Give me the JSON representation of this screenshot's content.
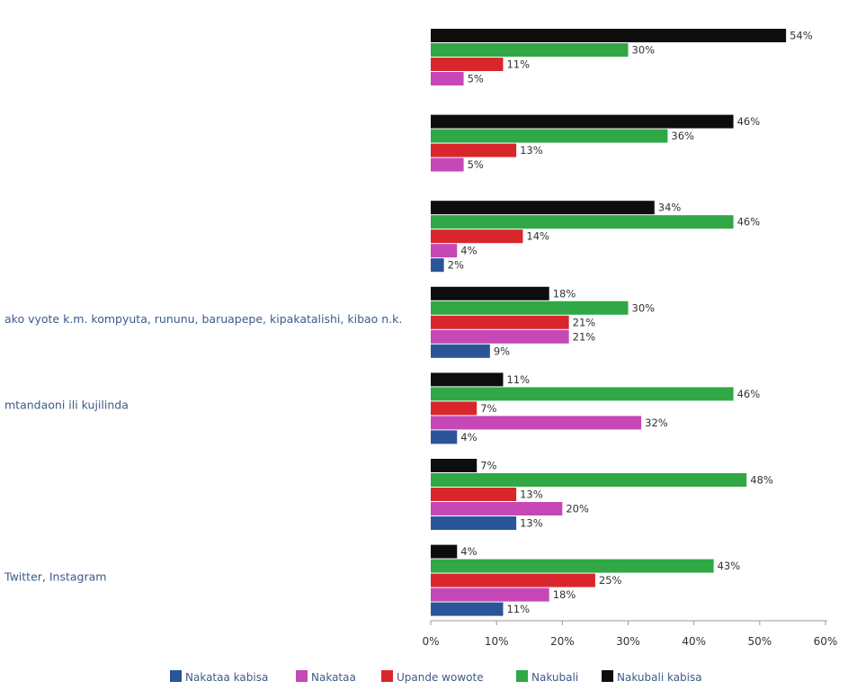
{
  "chart_data": {
    "type": "bar",
    "orientation": "horizontal",
    "categories": [
      "",
      "",
      "",
      "ako vyote k.m. kompyuta, rununu, baruapepe, kipakatalishi, kibao n.k.",
      "mtandaoni ili kujilinda",
      "",
      "Twitter, Instagram"
    ],
    "series": [
      {
        "name": "Nakataa kabisa",
        "color": "#2a5598",
        "values": [
          null,
          null,
          2,
          9,
          4,
          13,
          11
        ]
      },
      {
        "name": "Nakataa",
        "color": "#c548b6",
        "values": [
          5,
          5,
          4,
          21,
          32,
          20,
          18
        ]
      },
      {
        "name": "Upande wowote",
        "color": "#d9262c",
        "values": [
          11,
          13,
          14,
          21,
          7,
          13,
          25
        ]
      },
      {
        "name": "Nakubali",
        "color": "#2fa845",
        "values": [
          30,
          36,
          46,
          30,
          46,
          48,
          43
        ]
      },
      {
        "name": "Nakubali kabisa",
        "color": "#0d0d0d",
        "values": [
          54,
          46,
          34,
          18,
          11,
          7,
          4
        ]
      }
    ],
    "xlim": [
      0,
      60
    ],
    "xticks": [
      "0%",
      "10%",
      "20%",
      "30%",
      "40%",
      "50%",
      "60%"
    ],
    "value_suffix": "%",
    "legend_position": "bottom",
    "grid": false
  }
}
